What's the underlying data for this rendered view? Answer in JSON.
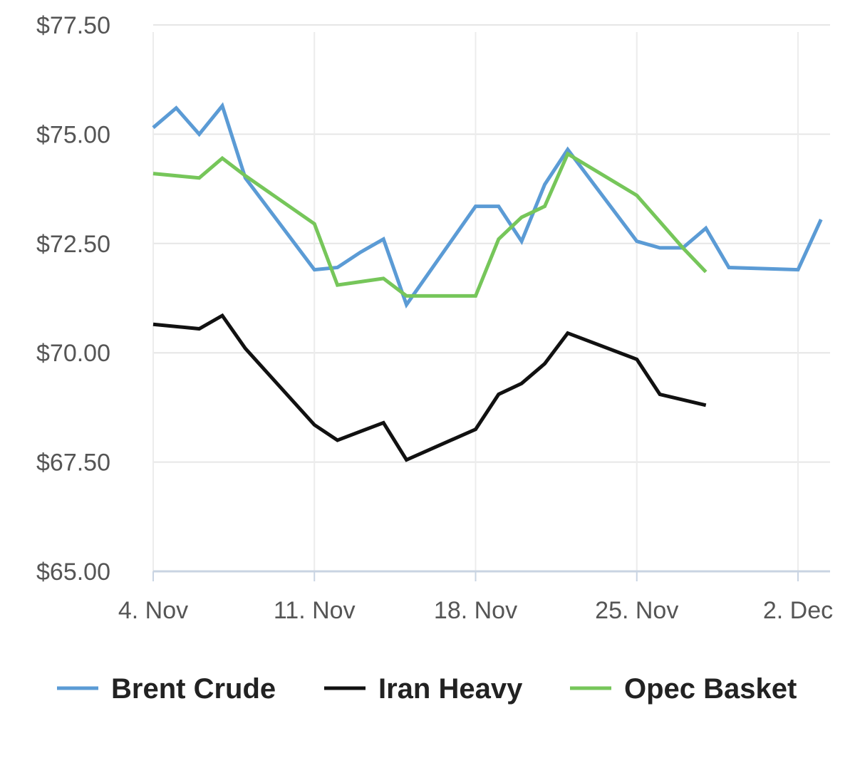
{
  "chart_data": {
    "type": "line",
    "title": "",
    "xlabel": "",
    "ylabel": "",
    "x_type": "date",
    "x_ticks": [
      {
        "date": "2019-11-04",
        "label": "4. Nov"
      },
      {
        "date": "2019-11-11",
        "label": "11. Nov"
      },
      {
        "date": "2019-11-18",
        "label": "18. Nov"
      },
      {
        "date": "2019-11-25",
        "label": "25. Nov"
      },
      {
        "date": "2019-12-02",
        "label": "2. Dec"
      }
    ],
    "xlim": [
      "2019-11-04",
      "2019-12-05"
    ],
    "ylim": [
      65,
      77.5
    ],
    "y_ticks": [
      {
        "value": 77.5,
        "label": "$77.50"
      },
      {
        "value": 75,
        "label": "$75.00"
      },
      {
        "value": 72.5,
        "label": "$72.50"
      },
      {
        "value": 70,
        "label": "$70.00"
      },
      {
        "value": 67.5,
        "label": "$67.50"
      },
      {
        "value": 65,
        "label": "$65.00"
      }
    ],
    "grid": true,
    "legend_position": "bottom",
    "series": [
      {
        "name": "Brent Crude",
        "color": "#5b9bd5",
        "points": [
          [
            "2019-11-04",
            75.15
          ],
          [
            "2019-11-05",
            75.6
          ],
          [
            "2019-11-06",
            75.0
          ],
          [
            "2019-11-07",
            75.65
          ],
          [
            "2019-11-08",
            74.0
          ],
          [
            "2019-11-11",
            71.9
          ],
          [
            "2019-11-12",
            71.95
          ],
          [
            "2019-11-13",
            72.3
          ],
          [
            "2019-11-14",
            72.6
          ],
          [
            "2019-11-15",
            71.1
          ],
          [
            "2019-11-18",
            73.35
          ],
          [
            "2019-11-19",
            73.35
          ],
          [
            "2019-11-20",
            72.55
          ],
          [
            "2019-11-21",
            73.85
          ],
          [
            "2019-11-22",
            74.65
          ],
          [
            "2019-11-25",
            72.55
          ],
          [
            "2019-11-26",
            72.4
          ],
          [
            "2019-11-27",
            72.4
          ],
          [
            "2019-11-28",
            72.85
          ],
          [
            "2019-11-29",
            71.95
          ],
          [
            "2019-12-02",
            71.9
          ],
          [
            "2019-12-03",
            73.05
          ]
        ]
      },
      {
        "name": "Iran Heavy",
        "color": "#111111",
        "points": [
          [
            "2019-11-04",
            70.65
          ],
          [
            "2019-11-06",
            70.55
          ],
          [
            "2019-11-07",
            70.85
          ],
          [
            "2019-11-08",
            70.1
          ],
          [
            "2019-11-11",
            68.35
          ],
          [
            "2019-11-12",
            68.0
          ],
          [
            "2019-11-14",
            68.4
          ],
          [
            "2019-11-15",
            67.55
          ],
          [
            "2019-11-18",
            68.25
          ],
          [
            "2019-11-19",
            69.05
          ],
          [
            "2019-11-20",
            69.3
          ],
          [
            "2019-11-21",
            69.75
          ],
          [
            "2019-11-22",
            70.45
          ],
          [
            "2019-11-25",
            69.85
          ],
          [
            "2019-11-26",
            69.05
          ],
          [
            "2019-11-28",
            68.8
          ]
        ]
      },
      {
        "name": "Opec Basket",
        "color": "#76c65a",
        "points": [
          [
            "2019-11-04",
            74.1
          ],
          [
            "2019-11-06",
            74.0
          ],
          [
            "2019-11-07",
            74.45
          ],
          [
            "2019-11-08",
            74.05
          ],
          [
            "2019-11-11",
            72.95
          ],
          [
            "2019-11-12",
            71.55
          ],
          [
            "2019-11-14",
            71.7
          ],
          [
            "2019-11-15",
            71.3
          ],
          [
            "2019-11-18",
            71.3
          ],
          [
            "2019-11-19",
            72.6
          ],
          [
            "2019-11-20",
            73.1
          ],
          [
            "2019-11-21",
            73.35
          ],
          [
            "2019-11-22",
            74.55
          ],
          [
            "2019-11-25",
            73.6
          ],
          [
            "2019-11-27",
            72.4
          ],
          [
            "2019-11-28",
            71.85
          ]
        ]
      }
    ]
  }
}
